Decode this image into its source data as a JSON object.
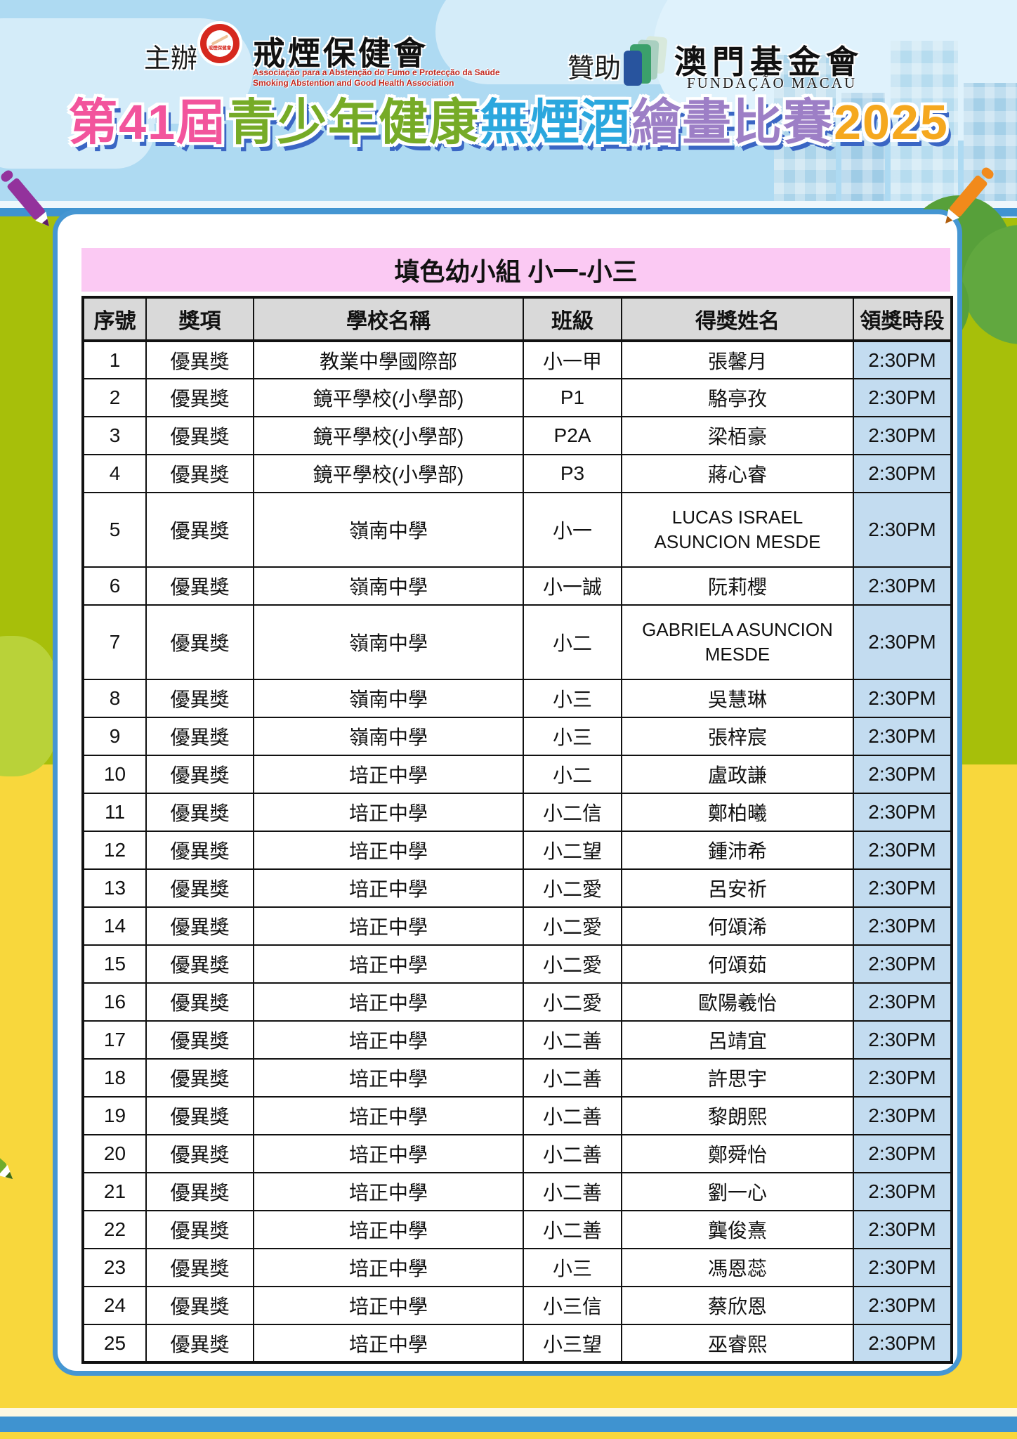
{
  "header": {
    "organizer_label": "主辦",
    "organizer_name": "戒煙保健會",
    "organizer_logo_text": "戒煙保健會",
    "organizer_sub_pt": "Associação para a Abstenção do Fumo e Protecção da Saúde",
    "organizer_sub_en": "Smoking  Abstention  and  Good  Health  Association",
    "sponsor_label": "贊助",
    "sponsor_name": "澳門基金會",
    "sponsor_sub": "FUNDAÇÃO MACAU"
  },
  "title": {
    "segments": [
      {
        "text": "第41屆",
        "color": "#f2549c"
      },
      {
        "text": "青少年健康",
        "color": "#76ab27"
      },
      {
        "text": "無煙酒",
        "color": "#2ba7de"
      },
      {
        "text": "繪畫比賽",
        "color": "#9d7fc6"
      },
      {
        "text": "2025",
        "color": "#f5a81f"
      }
    ]
  },
  "table": {
    "group_title": "填色幼小組 小一-小三",
    "columns": [
      "序號",
      "獎項",
      "學校名稱",
      "班級",
      "得獎姓名",
      "領獎時段"
    ],
    "column_keys": [
      "no",
      "award",
      "school",
      "class",
      "name",
      "time"
    ],
    "rows": [
      [
        "1",
        "優異獎",
        "教業中學國際部",
        "小一甲",
        "張馨月",
        "2:30PM"
      ],
      [
        "2",
        "優異獎",
        "鏡平學校(小學部)",
        "P1",
        "駱亭孜",
        "2:30PM"
      ],
      [
        "3",
        "優異獎",
        "鏡平學校(小學部)",
        "P2A",
        "梁栢豪",
        "2:30PM"
      ],
      [
        "4",
        "優異獎",
        "鏡平學校(小學部)",
        "P3",
        "蔣心睿",
        "2:30PM"
      ],
      [
        "5",
        "優異獎",
        "嶺南中學",
        "小一",
        "LUCAS ISRAEL ASUNCION MESDE",
        "2:30PM"
      ],
      [
        "6",
        "優異獎",
        "嶺南中學",
        "小一誠",
        "阮莉櫻",
        "2:30PM"
      ],
      [
        "7",
        "優異獎",
        "嶺南中學",
        "小二",
        "GABRIELA ASUNCION MESDE",
        "2:30PM"
      ],
      [
        "8",
        "優異獎",
        "嶺南中學",
        "小三",
        "吳慧琳",
        "2:30PM"
      ],
      [
        "9",
        "優異獎",
        "嶺南中學",
        "小三",
        "張梓宸",
        "2:30PM"
      ],
      [
        "10",
        "優異獎",
        "培正中學",
        "小二",
        "盧政謙",
        "2:30PM"
      ],
      [
        "11",
        "優異獎",
        "培正中學",
        "小二信",
        "鄭柏曦",
        "2:30PM"
      ],
      [
        "12",
        "優異獎",
        "培正中學",
        "小二望",
        "鍾沛希",
        "2:30PM"
      ],
      [
        "13",
        "優異獎",
        "培正中學",
        "小二愛",
        "呂安祈",
        "2:30PM"
      ],
      [
        "14",
        "優異獎",
        "培正中學",
        "小二愛",
        "何頌浠",
        "2:30PM"
      ],
      [
        "15",
        "優異獎",
        "培正中學",
        "小二愛",
        "何頌茹",
        "2:30PM"
      ],
      [
        "16",
        "優異獎",
        "培正中學",
        "小二愛",
        "歐陽羲怡",
        "2:30PM"
      ],
      [
        "17",
        "優異獎",
        "培正中學",
        "小二善",
        "呂靖宜",
        "2:30PM"
      ],
      [
        "18",
        "優異獎",
        "培正中學",
        "小二善",
        "許思宇",
        "2:30PM"
      ],
      [
        "19",
        "優異獎",
        "培正中學",
        "小二善",
        "黎朗熙",
        "2:30PM"
      ],
      [
        "20",
        "優異獎",
        "培正中學",
        "小二善",
        "鄭舜怡",
        "2:30PM"
      ],
      [
        "21",
        "優異獎",
        "培正中學",
        "小二善",
        "劉一心",
        "2:30PM"
      ],
      [
        "22",
        "優異獎",
        "培正中學",
        "小二善",
        "龔俊熹",
        "2:30PM"
      ],
      [
        "23",
        "優異獎",
        "培正中學",
        "小三",
        "馮恩蕊",
        "2:30PM"
      ],
      [
        "24",
        "優異獎",
        "培正中學",
        "小三信",
        "蔡欣恩",
        "2:30PM"
      ],
      [
        "25",
        "優異獎",
        "培正中學",
        "小三望",
        "巫睿熙",
        "2:30PM"
      ]
    ]
  },
  "colors": {
    "sky": "#aedaf2",
    "ground_olive": "#a7bf0a",
    "ground_yellow": "#f8d73c",
    "tree_green": "#5aa33c",
    "card_border_blue": "#4596d2",
    "banner_pink": "#fbc9f3",
    "header_gray": "#d9d9d9",
    "time_cell_blue": "#c3dcf0",
    "logo_red": "#d6281e",
    "pencil_purple": "#93329c",
    "pencil_orange": "#f28a1b",
    "pencil_green": "#72ac2c"
  }
}
